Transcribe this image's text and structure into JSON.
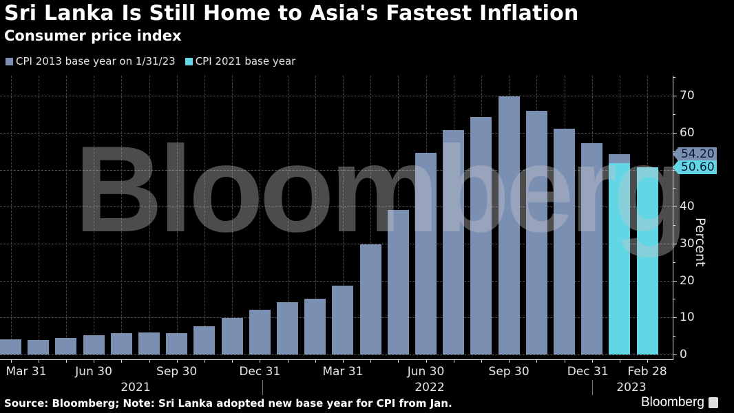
{
  "header": {
    "title": "Sri Lanka Is Still Home to Asia's Fastest Inflation",
    "subtitle": "Consumer price index"
  },
  "legend": [
    {
      "label": "CPI 2013 base year on 1/31/23",
      "color": "#7b8fb3"
    },
    {
      "label": "CPI 2021 base year",
      "color": "#62d6e4"
    }
  ],
  "colors": {
    "series_2013": "#7b8fb3",
    "series_2021": "#62d6e4",
    "background": "#000000"
  },
  "y_axis": {
    "label": "Percent",
    "ticks": [
      "0",
      "10",
      "20",
      "30",
      "40",
      "50",
      "60",
      "70"
    ]
  },
  "x_axis": {
    "tick_labels": [
      "Mar 31",
      "Jun 30",
      "Sep 30",
      "Dec 31",
      "Mar 31",
      "Jun 30",
      "Sep 30",
      "Dec 31",
      "Feb 28"
    ],
    "years": [
      "2021",
      "2022",
      "2023"
    ]
  },
  "value_tags": {
    "series_2013_last": "54.20",
    "series_2021_last": "50.60"
  },
  "watermark": "Bloomberg",
  "footer": {
    "source": "Source: Bloomberg; Note: Sri Lanka adopted new base year for CPI from Jan.",
    "brand": "Bloomberg"
  },
  "chart_data": {
    "type": "bar",
    "title": "Sri Lanka Is Still Home to Asia's Fastest Inflation",
    "subtitle": "Consumer price index",
    "xlabel": "",
    "ylabel": "Percent",
    "ylim": [
      0,
      70
    ],
    "grid": true,
    "legend_position": "top-left",
    "categories": [
      "Mar 2021",
      "Apr 2021",
      "May 2021",
      "Jun 2021",
      "Jul 2021",
      "Aug 2021",
      "Sep 2021",
      "Oct 2021",
      "Nov 2021",
      "Dec 2021",
      "Jan 2022",
      "Feb 2022",
      "Mar 2022",
      "Apr 2022",
      "May 2022",
      "Jun 2022",
      "Jul 2022",
      "Aug 2022",
      "Sep 2022",
      "Oct 2022",
      "Nov 2022",
      "Dec 2022",
      "Jan 2023",
      "Feb 2023"
    ],
    "series": [
      {
        "name": "CPI 2013 base year on 1/31/23",
        "values": [
          4.1,
          3.9,
          4.5,
          5.2,
          5.7,
          6.0,
          5.7,
          7.6,
          9.9,
          12.1,
          14.2,
          15.1,
          18.7,
          29.8,
          39.1,
          54.6,
          60.8,
          64.3,
          69.8,
          66.0,
          61.0,
          57.2,
          54.2,
          null
        ]
      },
      {
        "name": "CPI 2021 base year",
        "values": [
          null,
          null,
          null,
          null,
          null,
          null,
          null,
          null,
          null,
          null,
          null,
          null,
          null,
          null,
          null,
          null,
          null,
          null,
          null,
          null,
          null,
          null,
          51.7,
          50.6
        ]
      }
    ],
    "annotations": [
      "54.20",
      "50.60"
    ]
  }
}
